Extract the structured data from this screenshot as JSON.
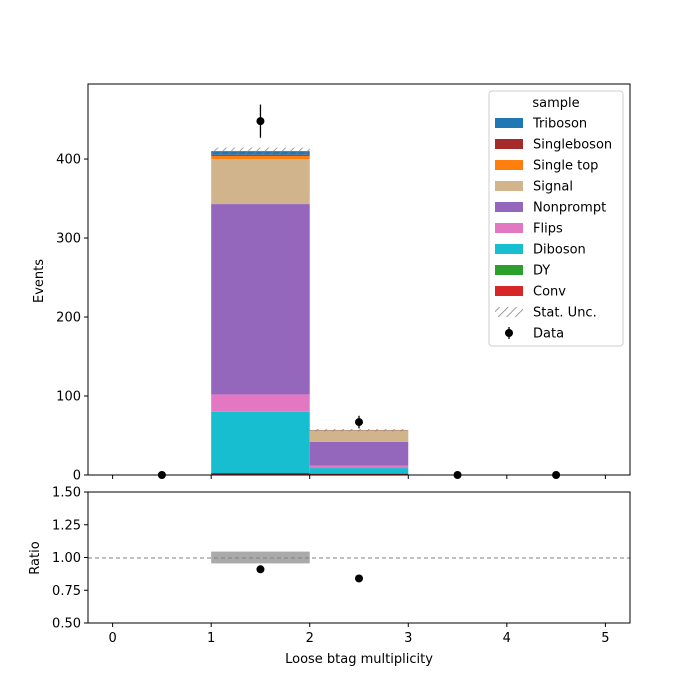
{
  "chart_data": {
    "type": "bar",
    "stacked": true,
    "xlabel": "Loose btag multiplicity",
    "ylabel": "Events",
    "ratio_ylabel": "Ratio",
    "legend_title": "sample",
    "legend_position": "top-right",
    "bin_edges": [
      0,
      1,
      2,
      3,
      4,
      5
    ],
    "xlim": [
      -0.25,
      5.25
    ],
    "ylim": [
      0,
      495
    ],
    "ratio_ylim": [
      0.5,
      1.5
    ],
    "x_ticks": [
      "0",
      "1",
      "2",
      "3",
      "4",
      "5"
    ],
    "y_ticks": [
      "0",
      "100",
      "200",
      "300",
      "400"
    ],
    "ratio_y_ticks": [
      "0.50",
      "0.75",
      "1.00",
      "1.25",
      "1.50"
    ],
    "series": [
      {
        "name": "Conv",
        "color": "#d62728",
        "values": [
          0,
          1.5,
          0.5,
          0,
          0
        ]
      },
      {
        "name": "DY",
        "color": "#2ca02c",
        "values": [
          0,
          0.5,
          0.3,
          0,
          0
        ]
      },
      {
        "name": "Diboson",
        "color": "#17becf",
        "values": [
          0,
          78,
          8,
          0,
          0
        ]
      },
      {
        "name": "Flips",
        "color": "#e377c2",
        "values": [
          0,
          22,
          3,
          0,
          0
        ]
      },
      {
        "name": "Nonprompt",
        "color": "#9467bd",
        "values": [
          0,
          241,
          30,
          0,
          0
        ]
      },
      {
        "name": "Signal",
        "color": "#d2b48c",
        "values": [
          0,
          57,
          14,
          0,
          0
        ]
      },
      {
        "name": "Single top",
        "color": "#ff7f0e",
        "values": [
          0,
          4,
          0.5,
          0,
          0
        ]
      },
      {
        "name": "Singleboson",
        "color": "#a52a2a",
        "values": [
          0,
          1.5,
          0.2,
          0,
          0
        ]
      },
      {
        "name": "Triboson",
        "color": "#1f77b4",
        "values": [
          0,
          4.5,
          0.3,
          0,
          0
        ]
      }
    ],
    "bottom_brown_band": [
      0,
      2.5,
      1.5,
      0,
      0
    ],
    "stat_unc": [
      0,
      4.5,
      1.5,
      0,
      0
    ],
    "stat_unc_label": "Stat. Unc.",
    "data": {
      "name": "Data",
      "x": [
        0.5,
        1.5,
        2.5,
        3.5,
        4.5
      ],
      "y": [
        0,
        448,
        67,
        0,
        0
      ],
      "yerr": [
        0,
        21,
        8,
        0,
        0
      ]
    },
    "ratio": {
      "x": [
        1.5,
        2.5
      ],
      "y": [
        0.91,
        0.84
      ],
      "band_bins": [
        [
          1,
          2
        ]
      ],
      "band_range": [
        0.955,
        1.045
      ],
      "reference_line": 1.0
    }
  }
}
